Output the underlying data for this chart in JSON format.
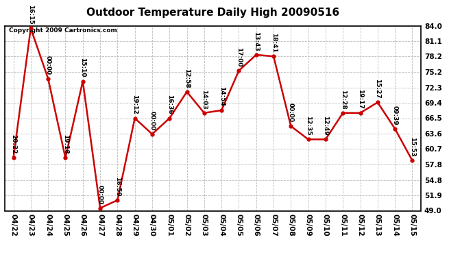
{
  "title": "Outdoor Temperature Daily High 20090516",
  "copyright_text": "Copyright 2009 Cartronics.com",
  "dates": [
    "04/22",
    "04/23",
    "04/24",
    "04/25",
    "04/26",
    "04/27",
    "04/28",
    "04/29",
    "04/30",
    "05/01",
    "05/02",
    "05/03",
    "05/04",
    "05/05",
    "05/06",
    "05/07",
    "05/08",
    "05/09",
    "05/10",
    "05/11",
    "05/12",
    "05/13",
    "05/14",
    "05/15"
  ],
  "values": [
    59.0,
    83.5,
    74.0,
    59.0,
    73.5,
    49.5,
    51.0,
    66.5,
    63.5,
    66.5,
    71.5,
    67.5,
    68.0,
    75.5,
    78.5,
    78.2,
    65.0,
    62.5,
    62.5,
    67.5,
    67.5,
    69.5,
    64.5,
    58.5
  ],
  "annotations": [
    "20:22",
    "16:15",
    "00:00",
    "19:18",
    "15:10",
    "00:00",
    "16:59",
    "19:12",
    "00:00",
    "16:36",
    "12:58",
    "14:03",
    "14:54",
    "17:00",
    "13:43",
    "18:41",
    "00:00",
    "12:35",
    "12:49",
    "12:28",
    "19:17",
    "15:27",
    "09:39",
    "15:53"
  ],
  "yticks": [
    49.0,
    51.9,
    54.8,
    57.8,
    60.7,
    63.6,
    66.5,
    69.4,
    72.3,
    75.2,
    78.2,
    81.1,
    84.0
  ],
  "ylim": [
    49.0,
    84.0
  ],
  "line_color": "#cc0000",
  "marker_color": "#cc0000",
  "background_color": "#ffffff",
  "grid_color": "#bbbbbb",
  "title_fontsize": 11,
  "annotation_fontsize": 6.5,
  "tick_fontsize": 7.5
}
